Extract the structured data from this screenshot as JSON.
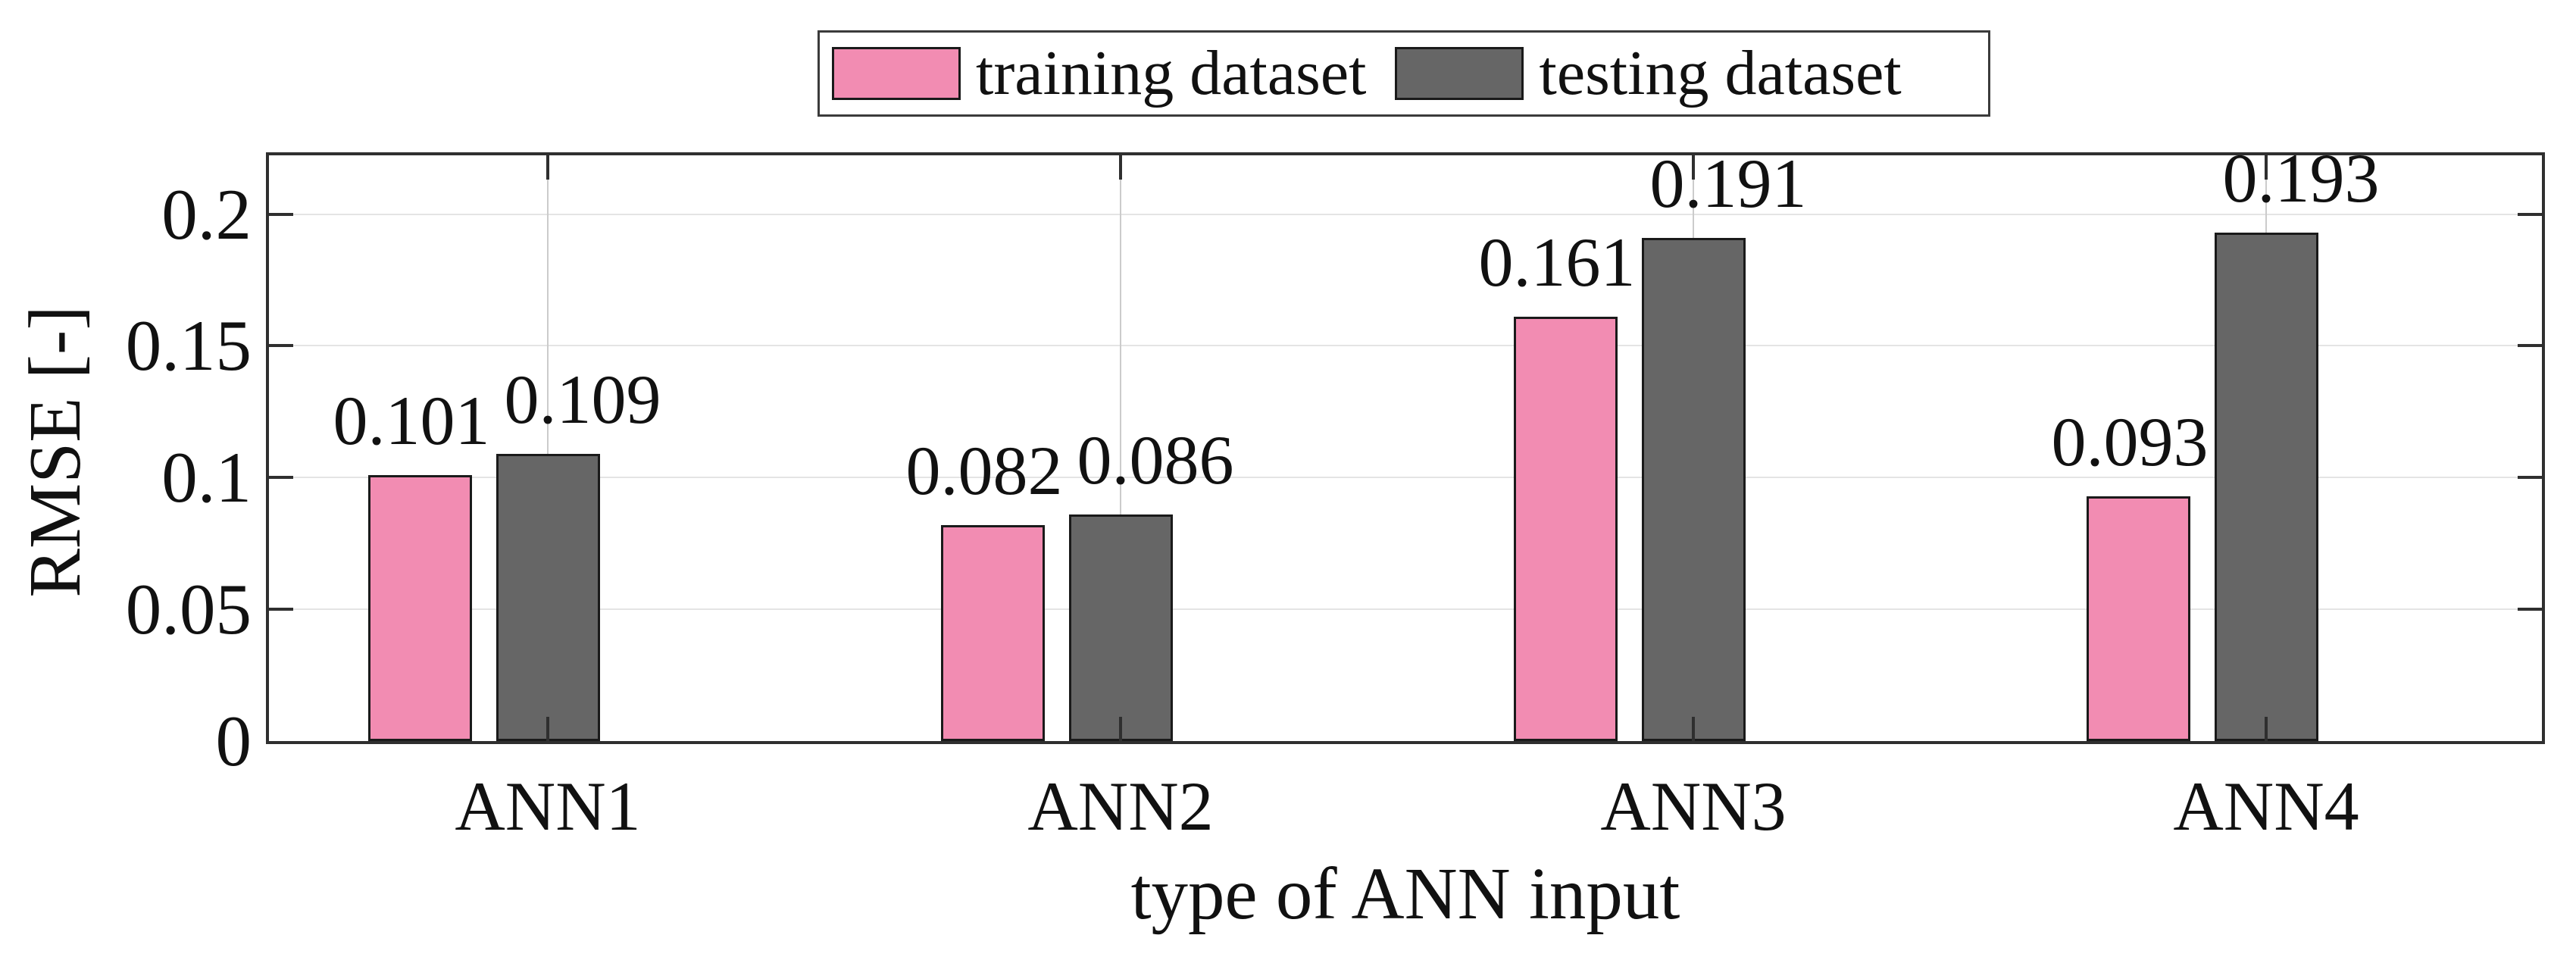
{
  "chart_data": {
    "type": "bar",
    "title": "",
    "xlabel": "type of ANN input",
    "ylabel": "RMSE [-]",
    "categories": [
      "ANN1",
      "ANN2",
      "ANN3",
      "ANN4"
    ],
    "series": [
      {
        "name": "training dataset",
        "color": "#F28CB2",
        "values": [
          0.101,
          0.082,
          0.161,
          0.093
        ]
      },
      {
        "name": "testing dataset",
        "color": "#666666",
        "values": [
          0.109,
          0.086,
          0.191,
          0.193
        ]
      }
    ],
    "value_labels": [
      [
        "0.101",
        "0.109"
      ],
      [
        "0.082",
        "0.086"
      ],
      [
        "0.161",
        "0.191"
      ],
      [
        "0.093",
        "0.193"
      ]
    ],
    "yticks": [
      0,
      0.05,
      0.1,
      0.15,
      0.2
    ],
    "ytick_labels": [
      "0",
      "0.05",
      "0.1",
      "0.15",
      "0.2"
    ],
    "ylim": [
      0,
      0.2223
    ],
    "grid": true,
    "legend_position": "top-center",
    "colors": {
      "bar_edge": "#1a1a1a",
      "axis": "#2f2f2f",
      "grid_horizontal": "#e4e4e4",
      "grid_vertical": "#cbcbcb",
      "text": "#111111"
    }
  }
}
